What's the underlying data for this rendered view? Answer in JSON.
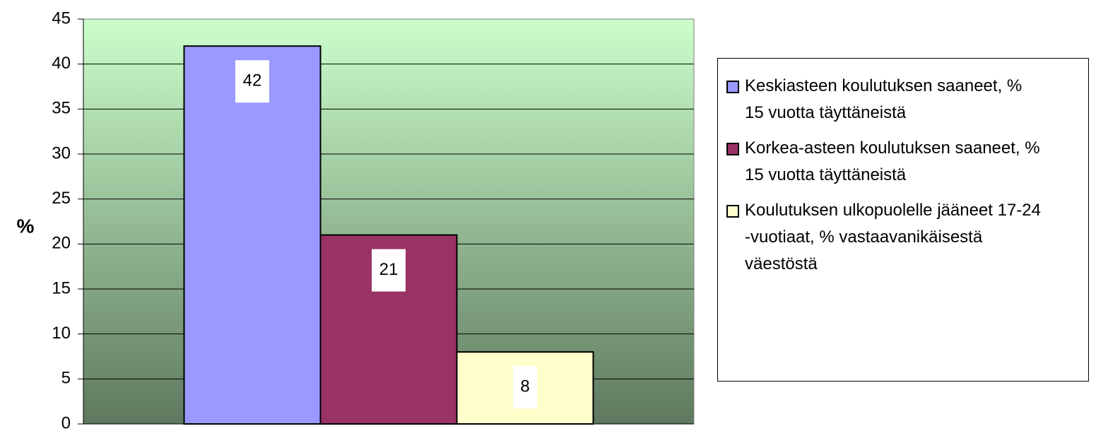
{
  "chart_data": {
    "type": "bar",
    "y_label": "%",
    "series": [
      {
        "name": "Keskiasteen koulutuksen saaneet, % 15 vuotta täyttäneistä",
        "color": "#9999ff",
        "values": [
          42
        ]
      },
      {
        "name": "Korkea-asteen koulutuksen saaneet, % 15 vuotta täyttäneistä",
        "color": "#993366",
        "values": [
          21
        ]
      },
      {
        "name": "Koulutuksen ulkopuolelle jääneet 17-24 -vuotiaat, % vastaavanikäisestä väestöstä",
        "color": "#ffffcc",
        "values": [
          8
        ]
      }
    ],
    "ylim": [
      0,
      45
    ],
    "yticks": [
      0,
      5,
      10,
      15,
      20,
      25,
      30,
      35,
      40,
      45
    ],
    "grid": true
  }
}
